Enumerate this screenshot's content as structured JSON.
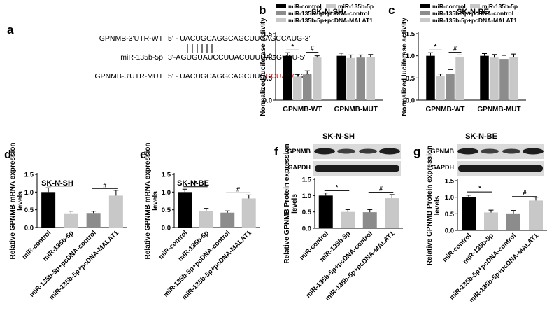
{
  "panels": {
    "a": {
      "letter": "a",
      "rows": [
        {
          "label": "GPNMB-3'UTR-WT",
          "seq_parts": [
            {
              "text": "5' - UACUGCAGGCAGCUUCAGCCAUG-3'",
              "color": "#000000"
            }
          ]
        },
        {
          "label": "miR-135b-5p",
          "seq_parts": [
            {
              "text": "3'-AGUGUAUCCUUACUUUUAGGUAU-5'",
              "color": "#000000"
            }
          ]
        },
        {
          "label": "GPNMB-3'UTR-MUT",
          "seq_parts": [
            {
              "text": "5' - UACUGCAGGCAGCUUC",
              "color": "#000000"
            },
            {
              "text": "GCUAGC",
              "color": "#e0201b"
            },
            {
              "text": "G-3'",
              "color": "#000000"
            }
          ]
        }
      ]
    },
    "b": {
      "letter": "b"
    },
    "c": {
      "letter": "c"
    },
    "d": {
      "letter": "d"
    },
    "e": {
      "letter": "e"
    },
    "f": {
      "letter": "f",
      "blot_labels": [
        "GPNMB",
        "GAPDH"
      ]
    },
    "g": {
      "letter": "g",
      "blot_labels": [
        "GPNMB",
        "GAPDH"
      ]
    }
  },
  "colors": {
    "black": "#000000",
    "dark_gray": "#8c8c8c",
    "mid_gray": "#7b7b7b",
    "light_gray": "#c8c8c8",
    "highlight_red": "#e0201b"
  },
  "chart_data": [
    {
      "id": "b",
      "type": "bar",
      "title": "SK-N-SH",
      "ylabel": "Normalized luciferase activity",
      "ylim": [
        0,
        1.5
      ],
      "yticks": [
        "0.0",
        "0.5",
        "1.0",
        "1.5"
      ],
      "categories": [
        "GPNMB-WT",
        "GPNMB-MUT"
      ],
      "legend": [
        "miR-control",
        "miR-135b-5p",
        "miR-135b-5p+pcDNA-control",
        "miR-135b-5p+pcDNA-MALAT1"
      ],
      "series": [
        {
          "name": "miR-control",
          "values": [
            1.0,
            1.0
          ],
          "errors": [
            0.07,
            0.06
          ]
        },
        {
          "name": "miR-135b-5p",
          "values": [
            0.53,
            0.95
          ],
          "errors": [
            0.05,
            0.07
          ]
        },
        {
          "name": "miR-135b-5p+pcDNA-control",
          "values": [
            0.58,
            0.96
          ],
          "errors": [
            0.08,
            0.06
          ]
        },
        {
          "name": "miR-135b-5p+pcDNA-MALAT1",
          "values": [
            0.96,
            0.97
          ],
          "errors": [
            0.04,
            0.06
          ]
        }
      ],
      "significance": [
        {
          "text": "*",
          "from": 0,
          "to": 1,
          "y": 1.13
        },
        {
          "text": "#",
          "from": 2,
          "to": 3,
          "y": 1.08
        }
      ]
    },
    {
      "id": "c",
      "type": "bar",
      "title": "SK-N-BE",
      "ylabel": "Normalized luciferase activity",
      "ylim": [
        0,
        1.5
      ],
      "yticks": [
        "0.0",
        "0.5",
        "1.0",
        "1.5"
      ],
      "categories": [
        "GPNMB-WT",
        "GPNMB-MUT"
      ],
      "legend": [
        "miR-control",
        "miR-135b-5p",
        "miR-135b-5p+pcDNA-control",
        "miR-135b-5p+pcDNA-MALAT1"
      ],
      "series": [
        {
          "name": "miR-control",
          "values": [
            1.0,
            1.0
          ],
          "errors": [
            0.07,
            0.05
          ]
        },
        {
          "name": "miR-135b-5p",
          "values": [
            0.54,
            0.96
          ],
          "errors": [
            0.05,
            0.07
          ]
        },
        {
          "name": "miR-135b-5p+pcDNA-control",
          "values": [
            0.6,
            0.93
          ],
          "errors": [
            0.09,
            0.08
          ]
        },
        {
          "name": "miR-135b-5p+pcDNA-MALAT1",
          "values": [
            0.98,
            0.97
          ],
          "errors": [
            0.04,
            0.07
          ]
        }
      ],
      "significance": [
        {
          "text": "*",
          "from": 0,
          "to": 1,
          "y": 1.13
        },
        {
          "text": "#",
          "from": 2,
          "to": 3,
          "y": 1.08
        }
      ]
    },
    {
      "id": "d",
      "type": "bar",
      "title": "SK-N-SH",
      "ylabel": "Relative GPNMB mRNA expression  levels",
      "ylim": [
        0,
        1.5
      ],
      "yticks": [
        "0.0",
        "0.5",
        "1.0",
        "1.5"
      ],
      "categories": [
        "miR-control",
        "miR-135b-5p",
        "miR-135b-5p+pcDNA-control",
        "miR-135b-5p+pcDNA-MALAT1"
      ],
      "values": [
        1.0,
        0.4,
        0.41,
        0.9
      ],
      "errors": [
        0.12,
        0.06,
        0.05,
        0.15
      ],
      "significance": [
        {
          "text": "*",
          "from": 0,
          "to": 1,
          "y": 1.17
        },
        {
          "text": "#",
          "from": 2,
          "to": 3,
          "y": 1.1
        }
      ]
    },
    {
      "id": "e",
      "type": "bar",
      "title": "SK-N-BE",
      "ylabel": "Relative GPNMB mRNA expression  levels",
      "ylim": [
        0,
        1.5
      ],
      "yticks": [
        "0.0",
        "0.5",
        "1.0",
        "1.5"
      ],
      "categories": [
        "miR-control",
        "miR-135b-5p",
        "miR-135b-5p+pcDNA-control",
        "miR-135b-5p+pcDNA-MALAT1"
      ],
      "values": [
        1.0,
        0.46,
        0.42,
        0.82
      ],
      "errors": [
        0.08,
        0.08,
        0.05,
        0.1
      ],
      "significance": [
        {
          "text": "*",
          "from": 0,
          "to": 1,
          "y": 1.15
        },
        {
          "text": "#",
          "from": 2,
          "to": 3,
          "y": 0.98
        }
      ]
    },
    {
      "id": "f",
      "type": "bar",
      "title": "SK-N-SH",
      "ylabel": "Relative GPNMB Protein expression  levels",
      "ylim": [
        0,
        1.5
      ],
      "yticks": [
        "0.0",
        "0.5",
        "1.0",
        "1.5"
      ],
      "categories": [
        "miR-control",
        "miR-135b-5p",
        "miR-135b-5p+pcDNA-control",
        "miR-135b-5p+pcDNA-MALAT1"
      ],
      "values": [
        1.0,
        0.5,
        0.49,
        0.92
      ],
      "errors": [
        0.08,
        0.07,
        0.08,
        0.11
      ],
      "significance": [
        {
          "text": "*",
          "from": 0,
          "to": 1,
          "y": 1.15
        },
        {
          "text": "#",
          "from": 2,
          "to": 3,
          "y": 1.1
        }
      ]
    },
    {
      "id": "g",
      "type": "bar",
      "title": "SK-N-BE",
      "ylabel": "Relative GPNMB Protein expression  levels",
      "ylim": [
        0,
        1.5
      ],
      "yticks": [
        "0.0",
        "0.5",
        "1.0",
        "1.5"
      ],
      "categories": [
        "miR-control",
        "miR-135b-5p",
        "miR-135b-5p+pcDNA-control",
        "miR-135b-5p+pcDNA-MALAT1"
      ],
      "values": [
        1.0,
        0.54,
        0.51,
        0.9
      ],
      "errors": [
        0.06,
        0.07,
        0.09,
        0.1
      ],
      "significance": [
        {
          "text": "*",
          "from": 0,
          "to": 1,
          "y": 1.16
        },
        {
          "text": "#",
          "from": 2,
          "to": 3,
          "y": 1.02
        }
      ]
    }
  ]
}
